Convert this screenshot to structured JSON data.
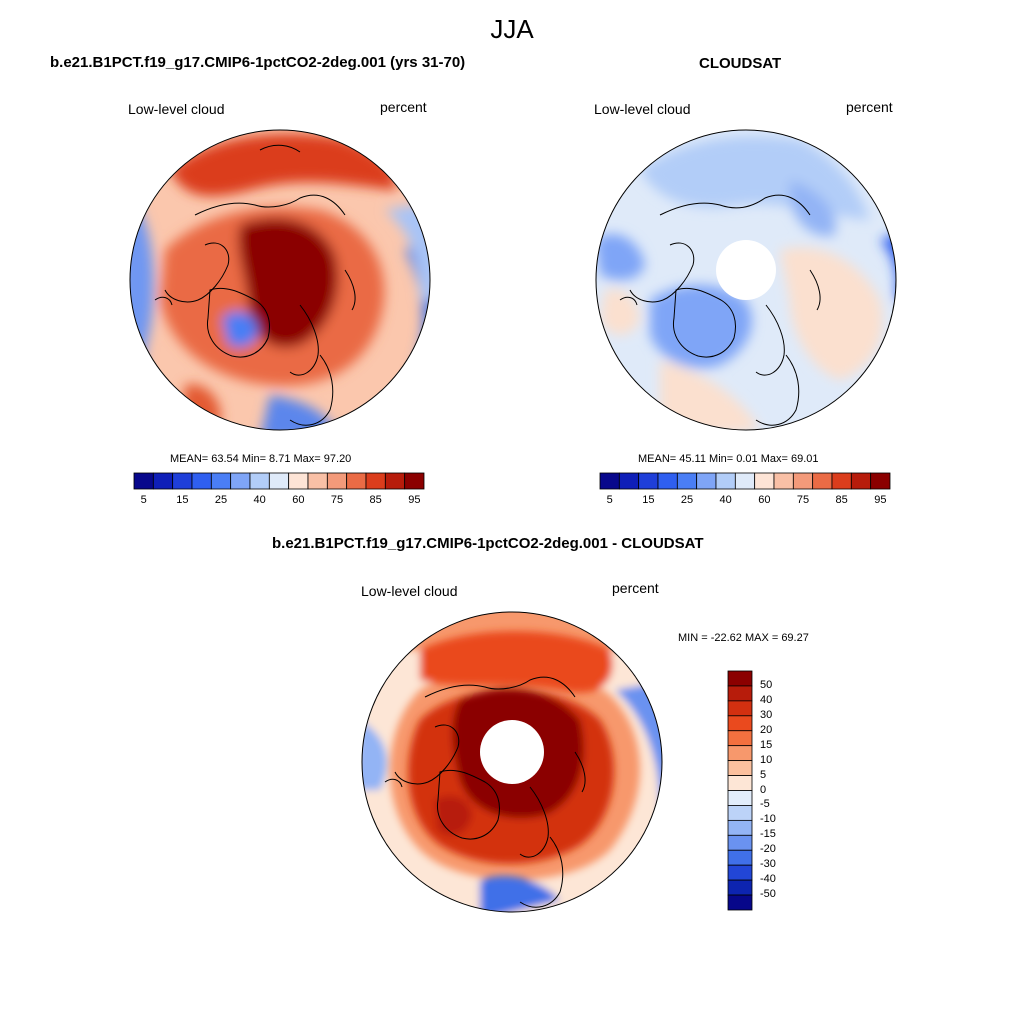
{
  "figure_title": "JJA",
  "panels": [
    {
      "title": "b.e21.B1PCT.f19_g17.CMIP6-1pctCO2-2deg.001 (yrs 31-70)",
      "left_label": "Low-level cloud",
      "right_label": "percent",
      "stats": "MEAN=  63.54  Min=   8.71  Max=  97.20",
      "mean": 63.54,
      "min": 8.71,
      "max": 97.2
    },
    {
      "title": "CLOUDSAT",
      "left_label": "Low-level cloud",
      "right_label": "percent",
      "stats": "MEAN=  45.11  Min=   0.01  Max=  69.01",
      "mean": 45.11,
      "min": 0.01,
      "max": 69.01
    },
    {
      "title": "b.e21.B1PCT.f19_g17.CMIP6-1pctCO2-2deg.001 - CLOUDSAT",
      "left_label": "Low-level cloud",
      "right_label": "percent",
      "stats": "MIN = -22.62 MAX =  69.27",
      "min": -22.62,
      "max": 69.27
    }
  ],
  "colorbar_abs": {
    "colors": [
      "#08088c",
      "#0f1fb8",
      "#1f3fd9",
      "#2f5ff0",
      "#4a7ef5",
      "#7fa5f7",
      "#b2cdf8",
      "#dfeaf9",
      "#fde4d6",
      "#f9c0a6",
      "#f39a7a",
      "#ea6b45",
      "#db3d1c",
      "#b71c0b",
      "#8b0000"
    ],
    "tick_labels": [
      "5",
      "15",
      "25",
      "40",
      "60",
      "75",
      "85",
      "95"
    ],
    "tick_positions": [
      1,
      3,
      5,
      7,
      9,
      11,
      13,
      15
    ]
  },
  "colorbar_diff": {
    "colors": [
      "#8b0000",
      "#b71c0b",
      "#d33010",
      "#ea4a1e",
      "#f3703f",
      "#f7986c",
      "#fbc09e",
      "#fde6d6",
      "#e2edfb",
      "#bcd3f8",
      "#93b4f5",
      "#6a92f0",
      "#4070e8",
      "#2246d6",
      "#0d24b0",
      "#07078a"
    ],
    "tick_labels": [
      "50",
      "40",
      "30",
      "20",
      "15",
      "10",
      "5",
      "0",
      "-5",
      "-10",
      "-15",
      "-20",
      "-30",
      "-40",
      "-50"
    ]
  },
  "chart_data": [
    {
      "type": "heatmap",
      "title": "b.e21.B1PCT.f19_g17.CMIP6-1pctCO2-2deg.001 (yrs 31-70)",
      "field": "Low-level cloud",
      "units": "percent",
      "projection": "polar-stereographic-north",
      "summary": {
        "mean": 63.54,
        "min": 8.71,
        "max": 97.2
      },
      "levels": [
        5,
        10,
        15,
        20,
        25,
        30,
        40,
        50,
        60,
        70,
        75,
        80,
        85,
        90,
        95
      ]
    },
    {
      "type": "heatmap",
      "title": "CLOUDSAT",
      "field": "Low-level cloud",
      "units": "percent",
      "projection": "polar-stereographic-north",
      "summary": {
        "mean": 45.11,
        "min": 0.01,
        "max": 69.01
      },
      "levels": [
        5,
        10,
        15,
        20,
        25,
        30,
        40,
        50,
        60,
        70,
        75,
        80,
        85,
        90,
        95
      ]
    },
    {
      "type": "heatmap",
      "title": "b.e21.B1PCT.f19_g17.CMIP6-1pctCO2-2deg.001 - CLOUDSAT",
      "field": "Low-level cloud",
      "units": "percent",
      "projection": "polar-stereographic-north",
      "summary": {
        "min": -22.62,
        "max": 69.27
      },
      "levels": [
        -50,
        -40,
        -30,
        -20,
        -15,
        -10,
        -5,
        0,
        5,
        10,
        15,
        20,
        30,
        40,
        50
      ]
    }
  ]
}
